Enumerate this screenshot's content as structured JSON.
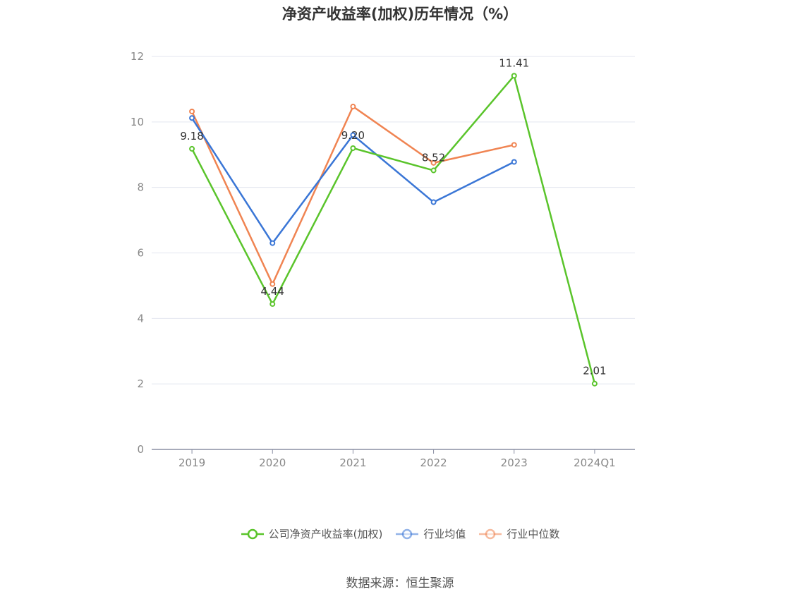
{
  "title": "净资产收益率(加权)历年情况（%）",
  "source": "数据来源：恒生聚源",
  "chart_data": {
    "type": "line",
    "categories": [
      "2019",
      "2020",
      "2021",
      "2022",
      "2023",
      "2024Q1"
    ],
    "ylim": [
      0,
      12
    ],
    "yticks": [
      0,
      2,
      4,
      6,
      8,
      10,
      12
    ],
    "grid": true,
    "legend_position": "bottom",
    "series": [
      {
        "name": "公司净资产收益率(加权)",
        "color": "#5ac42b",
        "values": [
          9.18,
          4.44,
          9.2,
          8.52,
          11.41,
          2.01
        ],
        "labels": [
          "9.18",
          "4.44",
          "9.20",
          "8.52",
          "11.41",
          "2.01"
        ]
      },
      {
        "name": "行业均值",
        "color": "#3a76d6",
        "values": [
          10.12,
          6.3,
          9.6,
          7.55,
          8.78,
          null
        ]
      },
      {
        "name": "行业中位数",
        "color": "#f08452",
        "values": [
          10.32,
          5.05,
          10.47,
          8.75,
          9.3,
          null
        ]
      }
    ]
  }
}
